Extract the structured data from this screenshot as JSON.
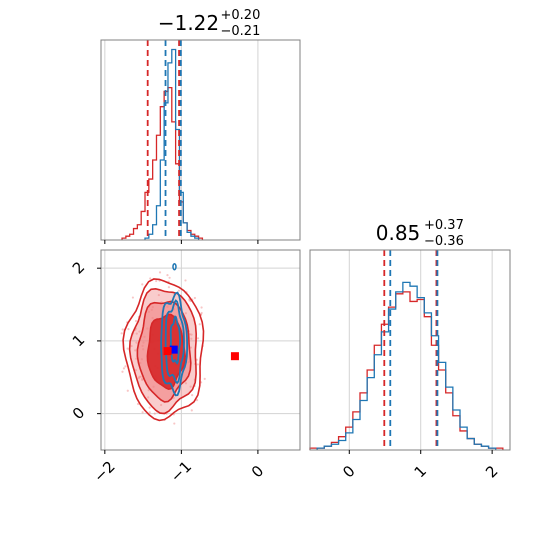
{
  "chart_data": {
    "type": "corner",
    "colors": {
      "red": "#d62728",
      "blue": "#1f77b4",
      "red_fill": "#f08080",
      "marker_red": "#ff0000",
      "marker_blue": "#0000ff"
    },
    "parameters": [
      {
        "title_value": "−1.22",
        "title_plus": "+0.20",
        "title_minus": "−0.21",
        "range": [
          -2.05,
          0.55
        ],
        "ticks": [
          -2,
          -1,
          0
        ],
        "tick_labels": [
          "−2",
          "−1",
          "0"
        ],
        "hist_red": {
          "x": [
            -1.75,
            -1.7,
            -1.65,
            -1.6,
            -1.55,
            -1.5,
            -1.45,
            -1.4,
            -1.35,
            -1.3,
            -1.25,
            -1.2,
            -1.15,
            -1.1,
            -1.05,
            -1.0,
            -0.95,
            -0.9,
            -0.85,
            -0.8,
            -0.75
          ],
          "y": [
            0.01,
            0.02,
            0.03,
            0.06,
            0.08,
            0.15,
            0.25,
            0.32,
            0.42,
            0.55,
            0.7,
            0.78,
            0.8,
            0.62,
            0.4,
            0.2,
            0.09,
            0.05,
            0.03,
            0.02,
            0.01
          ]
        },
        "hist_blue": {
          "x": [
            -1.45,
            -1.4,
            -1.35,
            -1.3,
            -1.25,
            -1.2,
            -1.15,
            -1.1,
            -1.05,
            -1.0,
            -0.95,
            -0.9,
            -0.85,
            -0.8
          ],
          "y": [
            0.01,
            0.03,
            0.08,
            0.18,
            0.42,
            0.72,
            0.93,
            1.0,
            0.58,
            0.25,
            0.09,
            0.04,
            0.02,
            0.01
          ]
        },
        "quantiles_red": [
          -1.44,
          -1.03
        ],
        "quantiles_blue": [
          -1.22,
          -1.02
        ]
      },
      {
        "title_value": "0.85",
        "title_plus": "+0.37",
        "title_minus": "−0.36",
        "range": [
          -0.55,
          2.25
        ],
        "ticks": [
          0,
          1,
          2
        ],
        "tick_labels": [
          "0",
          "1",
          "2"
        ],
        "hist_red": {
          "x": [
            -0.5,
            -0.4,
            -0.3,
            -0.2,
            -0.1,
            0.0,
            0.1,
            0.2,
            0.3,
            0.4,
            0.5,
            0.6,
            0.7,
            0.8,
            0.9,
            1.0,
            1.1,
            1.2,
            1.3,
            1.4,
            1.5,
            1.6,
            1.7,
            1.8,
            1.9,
            2.0,
            2.1
          ],
          "y": [
            0.01,
            0.01,
            0.02,
            0.04,
            0.07,
            0.12,
            0.2,
            0.3,
            0.42,
            0.55,
            0.66,
            0.75,
            0.82,
            0.83,
            0.78,
            0.79,
            0.7,
            0.55,
            0.42,
            0.3,
            0.18,
            0.1,
            0.06,
            0.03,
            0.02,
            0.01,
            0.01
          ]
        },
        "hist_blue": {
          "x": [
            -0.4,
            -0.3,
            -0.2,
            -0.1,
            0.0,
            0.1,
            0.2,
            0.3,
            0.4,
            0.5,
            0.6,
            0.7,
            0.8,
            0.9,
            1.0,
            1.1,
            1.2,
            1.3,
            1.4,
            1.5,
            1.6,
            1.7,
            1.8,
            1.9,
            2.0
          ],
          "y": [
            0.01,
            0.02,
            0.03,
            0.05,
            0.09,
            0.16,
            0.26,
            0.38,
            0.5,
            0.62,
            0.74,
            0.83,
            0.88,
            0.86,
            0.8,
            0.72,
            0.6,
            0.46,
            0.33,
            0.21,
            0.12,
            0.06,
            0.03,
            0.02,
            0.01
          ]
        },
        "quantiles_red": [
          0.49,
          1.22
        ],
        "quantiles_blue": [
          0.56,
          1.22
        ]
      }
    ],
    "joint": {
      "red_contours": [
        {
          "cx": -1.2,
          "cy": 0.86,
          "rx": 0.24,
          "ry": 0.5,
          "fill_opacity": 0.9
        },
        {
          "cx": -1.22,
          "cy": 0.88,
          "rx": 0.34,
          "ry": 0.68,
          "fill_opacity": 0.6
        },
        {
          "cx": -1.22,
          "cy": 0.88,
          "rx": 0.43,
          "ry": 0.84,
          "fill_opacity": 0.4
        },
        {
          "cx": -1.22,
          "cy": 0.88,
          "rx": 0.51,
          "ry": 0.95,
          "fill_opacity": 0.0
        }
      ],
      "blue_contours": [
        {
          "cx": -1.08,
          "cy": 1.0,
          "rx": 0.06,
          "ry": 0.3
        },
        {
          "cx": -1.09,
          "cy": 0.98,
          "rx": 0.12,
          "ry": 0.52
        },
        {
          "cx": -1.1,
          "cy": 0.96,
          "rx": 0.17,
          "ry": 0.65
        }
      ],
      "blue_outlier": {
        "x": -1.09,
        "y": 2.02
      },
      "markers": [
        {
          "x": -1.1,
          "y": 0.88,
          "color": "#0000ff"
        },
        {
          "x": -1.18,
          "y": 0.86,
          "color": "#ff0000"
        },
        {
          "x": -0.3,
          "y": 0.79,
          "color": "#ff0000"
        }
      ]
    }
  }
}
